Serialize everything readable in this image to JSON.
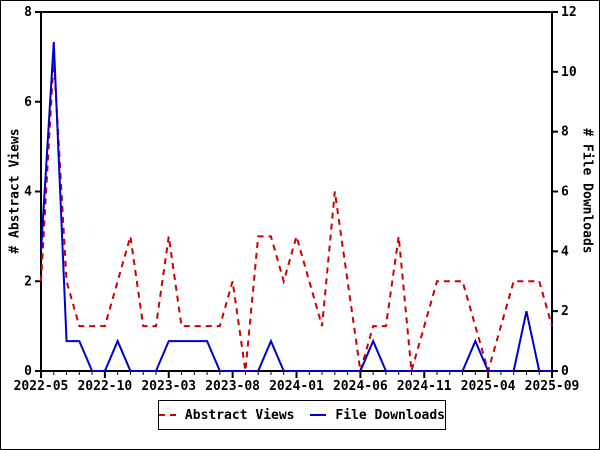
{
  "window": {
    "background": "#ffffff",
    "border_color": "#000000"
  },
  "chart_data": {
    "type": "line",
    "title": "",
    "months": [
      "2022-05",
      "2022-06",
      "2022-07",
      "2022-08",
      "2022-09",
      "2022-10",
      "2022-11",
      "2022-12",
      "2023-01",
      "2023-02",
      "2023-03",
      "2023-04",
      "2023-05",
      "2023-06",
      "2023-07",
      "2023-08",
      "2023-09",
      "2023-10",
      "2023-11",
      "2023-12",
      "2024-01",
      "2024-02",
      "2024-03",
      "2024-04",
      "2024-05",
      "2024-06",
      "2024-07",
      "2024-08",
      "2024-09",
      "2024-10",
      "2024-11",
      "2024-12",
      "2025-01",
      "2025-02",
      "2025-03",
      "2025-04",
      "2025-05",
      "2025-06",
      "2025-07",
      "2025-08",
      "2025-09"
    ],
    "x_tick_labels": [
      "2022-05",
      "2022-10",
      "2023-03",
      "2023-08",
      "2024-01",
      "2024-06",
      "2024-11",
      "2025-04",
      "2025-09"
    ],
    "x_major_every": 5,
    "grid": false,
    "legend_position": "bottom-center",
    "left_axis": {
      "label": "# Abstract Views",
      "min": 0,
      "max": 8,
      "tick_step": 2,
      "tick_labels": [
        "0",
        "2",
        "4",
        "6",
        "8"
      ]
    },
    "right_axis": {
      "label": "# File Downloads",
      "min": 0,
      "max": 12,
      "tick_step": 2,
      "tick_labels": [
        "0",
        "2",
        "4",
        "6",
        "8",
        "10",
        "12"
      ]
    },
    "series": [
      {
        "name": "Abstract Views",
        "axis": "left",
        "color": "#cc0000",
        "style": "dashed",
        "values": [
          2,
          7,
          2,
          1,
          1,
          1,
          2,
          3,
          1,
          1,
          3,
          1,
          1,
          1,
          1,
          2,
          0,
          3,
          3,
          2,
          3,
          2,
          1,
          4,
          2,
          0,
          1,
          1,
          3,
          0,
          1,
          2,
          2,
          2,
          1,
          0,
          1,
          2,
          2,
          2,
          1
        ]
      },
      {
        "name": "File Downloads",
        "axis": "right",
        "color": "#0000cc",
        "style": "solid",
        "values": [
          4,
          11,
          1,
          1,
          0,
          0,
          1,
          0,
          0,
          0,
          1,
          1,
          1,
          1,
          0,
          0,
          0,
          0,
          1,
          0,
          0,
          0,
          0,
          0,
          0,
          0,
          1,
          0,
          0,
          0,
          0,
          0,
          0,
          0,
          1,
          0,
          0,
          0,
          2,
          0,
          0
        ]
      }
    ]
  }
}
